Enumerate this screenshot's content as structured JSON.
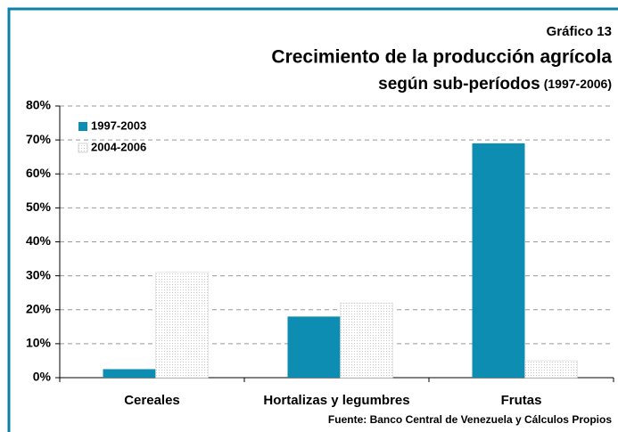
{
  "chart_data": {
    "type": "bar",
    "chart_label": "Gráfico 13",
    "title": "Crecimiento de la producción agrícola",
    "subtitle": "según sub-períodos",
    "subtitle_note": "(1997-2006)",
    "source": "Fuente: Banco Central de Venezuela y Cálculos Propios",
    "categories": [
      "Cereales",
      "Hortalizas y legumbres",
      "Frutas"
    ],
    "series": [
      {
        "name": "1997-2003",
        "color": "#0e8db3",
        "values": [
          2.5,
          18,
          69
        ]
      },
      {
        "name": "2004-2006",
        "color": "#c8c8c8",
        "pattern": "dotted",
        "values": [
          31,
          22,
          5
        ]
      }
    ],
    "ylim": [
      0,
      80
    ],
    "yticks": [
      {
        "value": 0,
        "label": "0%"
      },
      {
        "value": 10,
        "label": "10%"
      },
      {
        "value": 20,
        "label": "20%"
      },
      {
        "value": 30,
        "label": "30%"
      },
      {
        "value": 40,
        "label": "40%"
      },
      {
        "value": 50,
        "label": "50%"
      },
      {
        "value": 60,
        "label": "60%"
      },
      {
        "value": 70,
        "label": "70%"
      },
      {
        "value": 80,
        "label": "80%"
      }
    ],
    "grid": true,
    "legend": "top-left"
  }
}
